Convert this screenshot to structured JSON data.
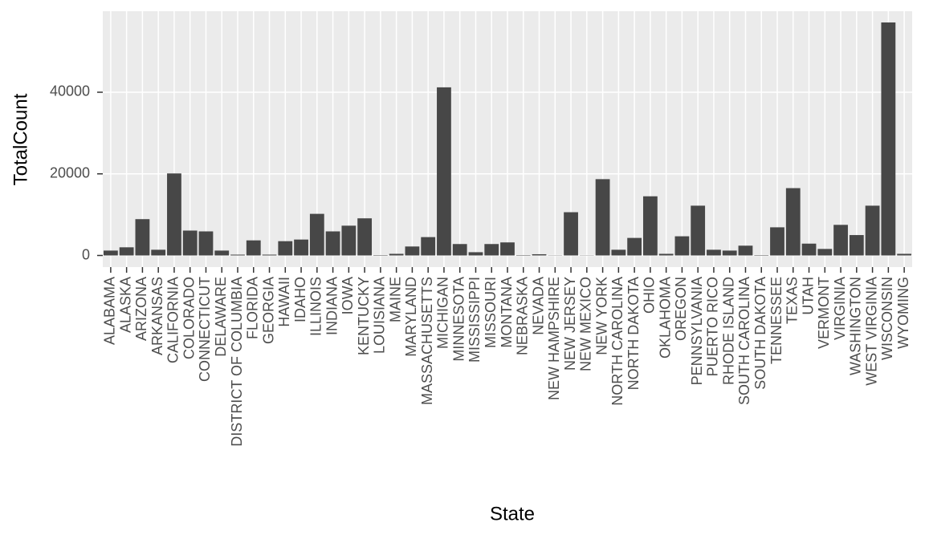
{
  "chart_data": {
    "type": "bar",
    "x_label": "State",
    "y_label": "TotalCount",
    "categories": [
      "ALABAMA",
      "ALASKA",
      "ARIZONA",
      "ARKANSAS",
      "CALIFORNIA",
      "COLORADO",
      "CONNECTICUT",
      "DELAWARE",
      "DISTRICT OF COLUMBIA",
      "FLORIDA",
      "GEORGIA",
      "HAWAII",
      "IDAHO",
      "ILLINOIS",
      "INDIANA",
      "IOWA",
      "KENTUCKY",
      "LOUISIANA",
      "MAINE",
      "MARYLAND",
      "MASSACHUSETTS",
      "MICHIGAN",
      "MINNESOTA",
      "MISSISSIPPI",
      "MISSOURI",
      "MONTANA",
      "NEBRASKA",
      "NEVADA",
      "NEW HAMPSHIRE",
      "NEW JERSEY",
      "NEW MEXICO",
      "NEW YORK",
      "NORTH CAROLINA",
      "NORTH DAKOTA",
      "OHIO",
      "OKLAHOMA",
      "OREGON",
      "PENNSYLVANIA",
      "PUERTO RICO",
      "RHODE ISLAND",
      "SOUTH CAROLINA",
      "SOUTH DAKOTA",
      "TENNESSEE",
      "TEXAS",
      "UTAH",
      "VERMONT",
      "VIRGINIA",
      "WASHINGTON",
      "WEST VIRGINIA",
      "WISCONSIN",
      "WYOMING"
    ],
    "values": [
      1200,
      2000,
      8900,
      1400,
      20100,
      6100,
      5900,
      1200,
      200,
      3700,
      200,
      3500,
      3900,
      10200,
      5900,
      7300,
      9100,
      100,
      400,
      2200,
      4500,
      41200,
      2800,
      800,
      2800,
      3200,
      100,
      300,
      50,
      10600,
      50,
      18700,
      1400,
      4300,
      14500,
      400,
      4700,
      12200,
      1400,
      1200,
      2400,
      100,
      6900,
      16500,
      2900,
      1600,
      7500,
      5000,
      12200,
      57100,
      400
    ],
    "color": "#474747",
    "ylim": [
      -2850,
      59850
    ],
    "yticks": [
      0,
      20000,
      40000
    ],
    "grid": true
  }
}
